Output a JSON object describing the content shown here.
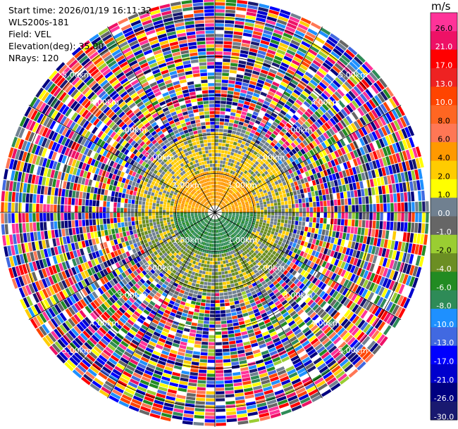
{
  "header": {
    "start_time": "Start time: 2026/01/19 16:11:32",
    "instrument": "WLS200s-181",
    "field": "Field: VEL",
    "elevation": "Elevation(deg): 35.00",
    "nrays": "NRays: 120"
  },
  "colorbar": {
    "unit": "m/s",
    "ticks": [
      "26.0",
      "21.0",
      "17.0",
      "13.0",
      "10.0",
      "8.0",
      "6.0",
      "4.0",
      "2.0",
      "1.0",
      "0.0",
      "-1.0",
      "-2.0",
      "-4.0",
      "-6.0",
      "-8.0",
      "-10.0",
      "-13.0",
      "-17.0",
      "-21.0",
      "-26.0",
      "-30.0"
    ],
    "colors": [
      "#ff3399",
      "#ee1166",
      "#ff0000",
      "#ee2222",
      "#ff4400",
      "#ff6622",
      "#ff7755",
      "#ff9900",
      "#ffcc00",
      "#ffff00",
      "#708090",
      "#666666",
      "#9acd32",
      "#6b8e23",
      "#228b22",
      "#2e8b57",
      "#1e90ff",
      "#4169e1",
      "#0000ff",
      "#0000cd",
      "#000080",
      "#191970"
    ]
  },
  "chart_data": {
    "type": "ppi",
    "field": "VEL",
    "units": "m/s",
    "elevation_deg": 35.0,
    "n_rays": 120,
    "range_rings_km": [
      1.0,
      2.0,
      3.0,
      4.0,
      5.0
    ],
    "ring_labels": [
      "1.00km",
      "2.00km",
      "3.00km",
      "4.00km",
      "5.00km"
    ],
    "max_range_km": 5.5,
    "spoke_azimuths_deg": [
      0,
      30,
      60,
      90,
      120,
      150,
      180,
      210,
      240,
      270,
      300,
      330
    ],
    "label_azimuths_deg": [
      45,
      135,
      225,
      315
    ],
    "regions": [
      {
        "description": "near-range receding",
        "range_km": [
          0.3,
          1.0
        ],
        "azimuth_deg": [
          270,
          90
        ],
        "value": 4.0
      },
      {
        "description": "near-range approaching",
        "range_km": [
          0.3,
          1.1
        ],
        "azimuth_deg": [
          90,
          270
        ],
        "value": -6.0
      },
      {
        "description": "mid-range weak receding",
        "range_km": [
          1.0,
          2.0
        ],
        "azimuth_deg": [
          270,
          90
        ],
        "value": 2.0
      },
      {
        "description": "mid-range weak approaching",
        "range_km": [
          1.0,
          2.0
        ],
        "azimuth_deg": [
          90,
          270
        ],
        "value": -2.0
      },
      {
        "description": "noise beyond",
        "range_km": [
          2.0,
          5.5
        ],
        "azimuth_deg": [
          0,
          360
        ],
        "value": null
      }
    ]
  }
}
